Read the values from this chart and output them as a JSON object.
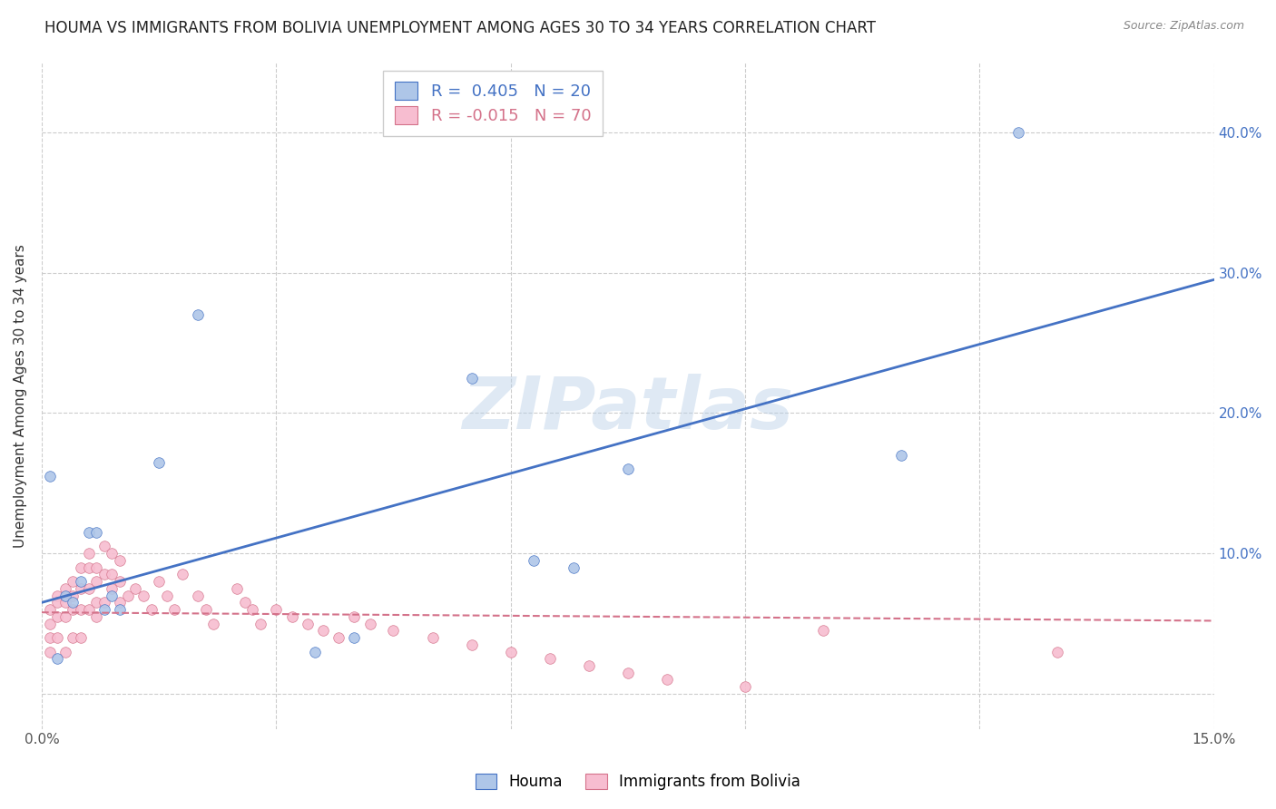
{
  "title": "HOUMA VS IMMIGRANTS FROM BOLIVIA UNEMPLOYMENT AMONG AGES 30 TO 34 YEARS CORRELATION CHART",
  "source": "Source: ZipAtlas.com",
  "ylabel": "Unemployment Among Ages 30 to 34 years",
  "xlim": [
    0.0,
    0.15
  ],
  "ylim": [
    -0.025,
    0.45
  ],
  "xticks": [
    0.0,
    0.03,
    0.06,
    0.09,
    0.12,
    0.15
  ],
  "xtick_labels": [
    "0.0%",
    "",
    "",
    "",
    "",
    "15.0%"
  ],
  "yticks": [
    0.0,
    0.1,
    0.2,
    0.3,
    0.4
  ],
  "ytick_labels": [
    "",
    "10.0%",
    "20.0%",
    "30.0%",
    "40.0%"
  ],
  "watermark_text": "ZIPatlas",
  "legend_labels": [
    "Houma",
    "Immigrants from Bolivia"
  ],
  "houma_R": "0.405",
  "houma_N": "20",
  "bolivia_R": "-0.015",
  "bolivia_N": "70",
  "houma_color": "#aec6e8",
  "houma_line_color": "#4472c4",
  "bolivia_color": "#f7bdd0",
  "bolivia_line_color": "#d4728a",
  "houma_scatter_x": [
    0.001,
    0.002,
    0.003,
    0.004,
    0.005,
    0.006,
    0.007,
    0.008,
    0.009,
    0.01,
    0.015,
    0.02,
    0.035,
    0.04,
    0.055,
    0.063,
    0.068,
    0.075,
    0.11,
    0.125
  ],
  "houma_scatter_y": [
    0.155,
    0.025,
    0.07,
    0.065,
    0.08,
    0.115,
    0.115,
    0.06,
    0.07,
    0.06,
    0.165,
    0.27,
    0.03,
    0.04,
    0.225,
    0.095,
    0.09,
    0.16,
    0.17,
    0.4
  ],
  "bolivia_scatter_x": [
    0.001,
    0.001,
    0.001,
    0.001,
    0.002,
    0.002,
    0.002,
    0.002,
    0.003,
    0.003,
    0.003,
    0.003,
    0.004,
    0.004,
    0.004,
    0.004,
    0.005,
    0.005,
    0.005,
    0.005,
    0.006,
    0.006,
    0.006,
    0.006,
    0.007,
    0.007,
    0.007,
    0.007,
    0.008,
    0.008,
    0.008,
    0.009,
    0.009,
    0.009,
    0.01,
    0.01,
    0.01,
    0.011,
    0.012,
    0.013,
    0.014,
    0.015,
    0.016,
    0.017,
    0.018,
    0.02,
    0.021,
    0.022,
    0.025,
    0.026,
    0.027,
    0.028,
    0.03,
    0.032,
    0.034,
    0.036,
    0.038,
    0.04,
    0.042,
    0.045,
    0.05,
    0.055,
    0.06,
    0.065,
    0.07,
    0.075,
    0.08,
    0.09,
    0.1,
    0.13
  ],
  "bolivia_scatter_y": [
    0.06,
    0.05,
    0.04,
    0.03,
    0.07,
    0.065,
    0.055,
    0.04,
    0.075,
    0.065,
    0.055,
    0.03,
    0.08,
    0.07,
    0.06,
    0.04,
    0.09,
    0.075,
    0.06,
    0.04,
    0.1,
    0.09,
    0.075,
    0.06,
    0.09,
    0.08,
    0.065,
    0.055,
    0.105,
    0.085,
    0.065,
    0.1,
    0.085,
    0.075,
    0.095,
    0.08,
    0.065,
    0.07,
    0.075,
    0.07,
    0.06,
    0.08,
    0.07,
    0.06,
    0.085,
    0.07,
    0.06,
    0.05,
    0.075,
    0.065,
    0.06,
    0.05,
    0.06,
    0.055,
    0.05,
    0.045,
    0.04,
    0.055,
    0.05,
    0.045,
    0.04,
    0.035,
    0.03,
    0.025,
    0.02,
    0.015,
    0.01,
    0.005,
    0.045,
    0.03
  ],
  "houma_trend_x": [
    0.0,
    0.15
  ],
  "houma_trend_y": [
    0.065,
    0.295
  ],
  "bolivia_trend_x": [
    0.0,
    0.15
  ],
  "bolivia_trend_y": [
    0.058,
    0.052
  ],
  "background_color": "#ffffff",
  "grid_color": "#cccccc",
  "title_fontsize": 12,
  "axis_label_fontsize": 11,
  "tick_fontsize": 11,
  "scatter_size": 70
}
